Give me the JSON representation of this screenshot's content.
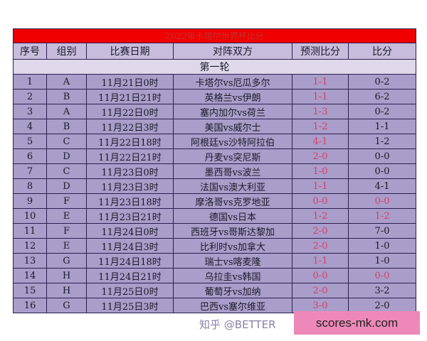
{
  "title": "2022年卡塔尔世界杯比分",
  "headers": [
    "序号",
    "组别",
    "比赛日期",
    "对阵双方",
    "预测比分",
    "比分"
  ],
  "section": "第一轮",
  "accent_color": "#d8406a",
  "rows": [
    {
      "no": "1",
      "group": "A",
      "date": "11月21日0时",
      "match": "卡塔尔vs厄瓜多尔",
      "pred": "1-1",
      "score": "0-2",
      "score_red": false
    },
    {
      "no": "2",
      "group": "B",
      "date": "11月21日21时",
      "match": "英格兰vs伊朗",
      "pred": "1-1",
      "score": "6-2",
      "score_red": false
    },
    {
      "no": "3",
      "group": "A",
      "date": "11月22日0时",
      "match": "塞内加尔vs荷兰",
      "pred": "1-3",
      "score": "0-2",
      "score_red": false
    },
    {
      "no": "4",
      "group": "B",
      "date": "11月22日3时",
      "match": "美国vs威尔士",
      "pred": "1-2",
      "score": "1-1",
      "score_red": false
    },
    {
      "no": "5",
      "group": "C",
      "date": "11月22日18时",
      "match": "阿根廷vs沙特阿拉伯",
      "pred": "4-1",
      "score": "1-2",
      "score_red": false
    },
    {
      "no": "6",
      "group": "D",
      "date": "11月22日21时",
      "match": "丹麦vs突尼斯",
      "pred": "2-0",
      "score": "0-0",
      "score_red": false
    },
    {
      "no": "7",
      "group": "C",
      "date": "11月23日0时",
      "match": "墨西哥vs波兰",
      "pred": "1-0",
      "score": "0-0",
      "score_red": false
    },
    {
      "no": "8",
      "group": "D",
      "date": "11月23日3时",
      "match": "法国vs澳大利亚",
      "pred": "1-1",
      "score": "4-1",
      "score_red": false
    },
    {
      "no": "9",
      "group": "F",
      "date": "11月23日18时",
      "match": "摩洛哥vs克罗地亚",
      "pred": "0-0",
      "score": "0-0",
      "score_red": true
    },
    {
      "no": "10",
      "group": "E",
      "date": "11月23日21时",
      "match": "德国vs日本",
      "pred": "1-2",
      "score": "1-2",
      "score_red": true
    },
    {
      "no": "11",
      "group": "F",
      "date": "11月24日0时",
      "match": "西班牙vs哥斯达黎加",
      "pred": "2-0",
      "score": "7-0",
      "score_red": false
    },
    {
      "no": "12",
      "group": "E",
      "date": "11月24日3时",
      "match": "比利时vs加拿大",
      "pred": "2-0",
      "score": "1-0",
      "score_red": false
    },
    {
      "no": "13",
      "group": "G",
      "date": "11月24日18时",
      "match": "瑞士vs喀麦隆",
      "pred": "1-1",
      "score": "1-0",
      "score_red": false
    },
    {
      "no": "14",
      "group": "H",
      "date": "11月24日21时",
      "match": "乌拉圭vs韩国",
      "pred": "0-0",
      "score": "0-0",
      "score_red": true
    },
    {
      "no": "15",
      "group": "H",
      "date": "11月25日0时",
      "match": "葡萄牙vs加纳",
      "pred": "2-0",
      "score": "3-2",
      "score_red": false
    },
    {
      "no": "16",
      "group": "G",
      "date": "11月25日3时",
      "match": "巴西vs塞尔维亚",
      "pred": "3-0",
      "score": "2-0",
      "score_red": false
    }
  ],
  "watermark": "知乎 @BETTER",
  "site_label": "scores-mk.com"
}
